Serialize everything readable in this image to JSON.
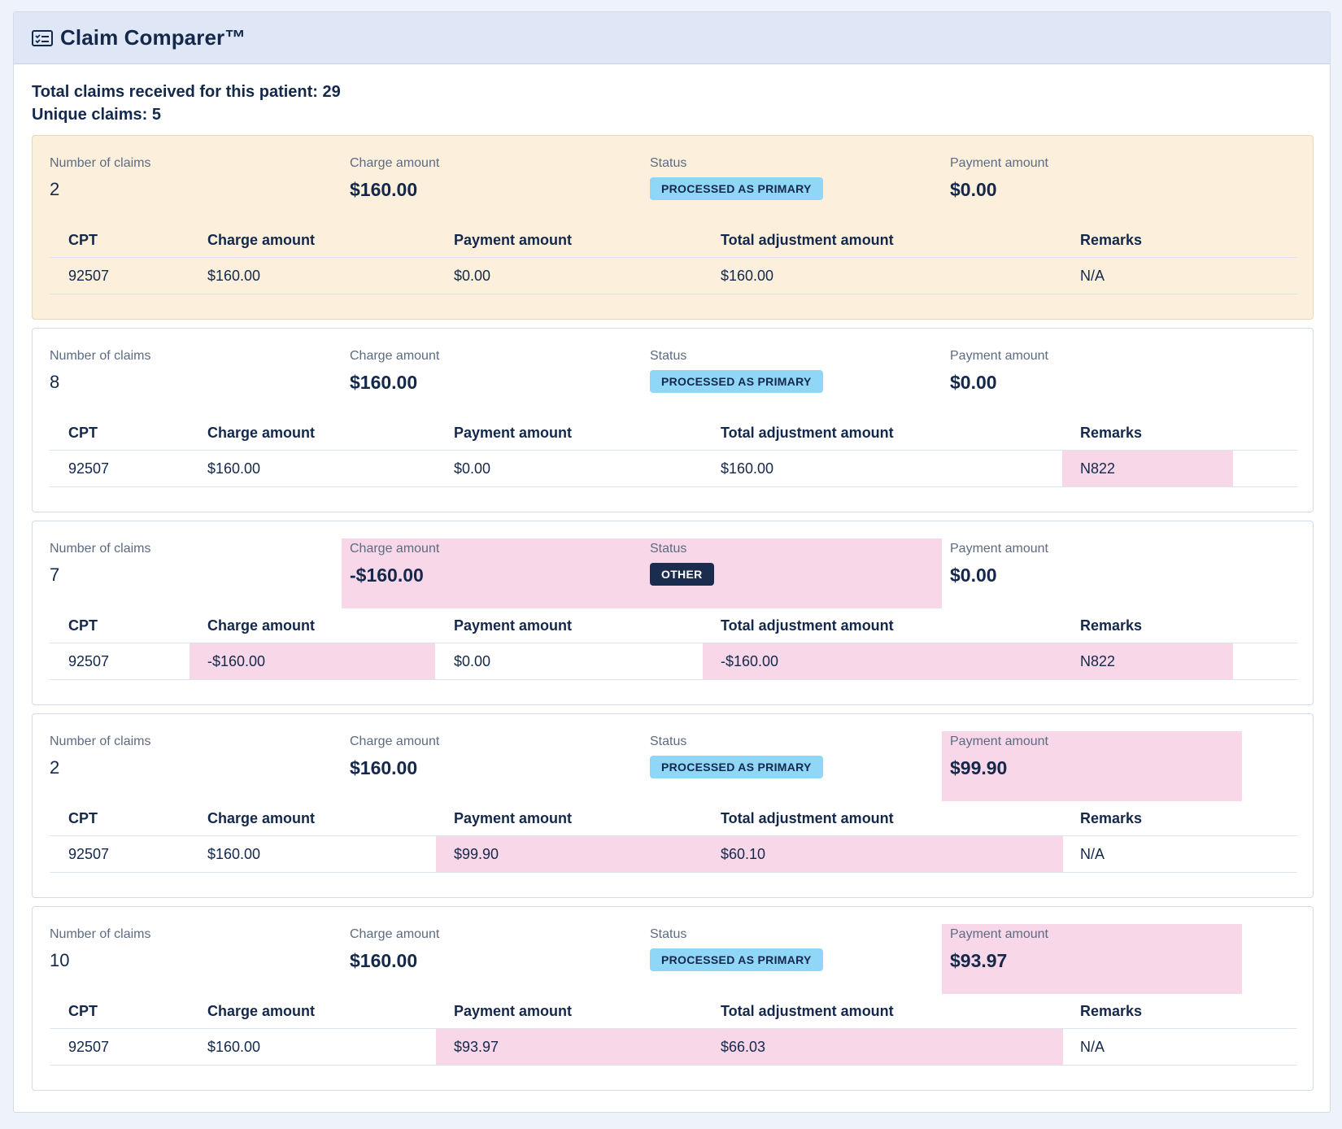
{
  "header": {
    "title": "Claim Comparer™",
    "icon": "list-card-icon"
  },
  "summary": {
    "total_line": "Total claims received for this patient: 29",
    "unique_line": "Unique claims: 5"
  },
  "labels": {
    "number_of_claims": "Number of claims",
    "charge_amount": "Charge amount",
    "status": "Status",
    "payment_amount": "Payment amount"
  },
  "table_headers": {
    "cpt": "CPT",
    "charge_amount": "Charge amount",
    "payment_amount": "Payment amount",
    "total_adjustment_amount": "Total adjustment amount",
    "remarks": "Remarks"
  },
  "colors": {
    "highlight_pink": "#f8d7e8",
    "warn_background": "#fcf0dc",
    "primary_badge": "#8fd6f7",
    "other_badge": "#1b2d4f"
  },
  "groups": [
    {
      "count": "2",
      "charge": "$160.00",
      "status": "PROCESSED AS PRIMARY",
      "payment": "$0.00",
      "row": {
        "cpt": "92507",
        "charge": "$160.00",
        "payment": "$0.00",
        "adjustment": "$160.00",
        "remarks": "N/A"
      }
    },
    {
      "count": "8",
      "charge": "$160.00",
      "status": "PROCESSED AS PRIMARY",
      "payment": "$0.00",
      "row": {
        "cpt": "92507",
        "charge": "$160.00",
        "payment": "$0.00",
        "adjustment": "$160.00",
        "remarks": "N822"
      }
    },
    {
      "count": "7",
      "charge": "-$160.00",
      "status": "OTHER",
      "payment": "$0.00",
      "row": {
        "cpt": "92507",
        "charge": "-$160.00",
        "payment": "$0.00",
        "adjustment": "-$160.00",
        "remarks": "N822"
      }
    },
    {
      "count": "2",
      "charge": "$160.00",
      "status": "PROCESSED AS PRIMARY",
      "payment": "$99.90",
      "row": {
        "cpt": "92507",
        "charge": "$160.00",
        "payment": "$99.90",
        "adjustment": "$60.10",
        "remarks": "N/A"
      }
    },
    {
      "count": "10",
      "charge": "$160.00",
      "status": "PROCESSED AS PRIMARY",
      "payment": "$93.97",
      "row": {
        "cpt": "92507",
        "charge": "$160.00",
        "payment": "$93.97",
        "adjustment": "$66.03",
        "remarks": "N/A"
      }
    }
  ]
}
